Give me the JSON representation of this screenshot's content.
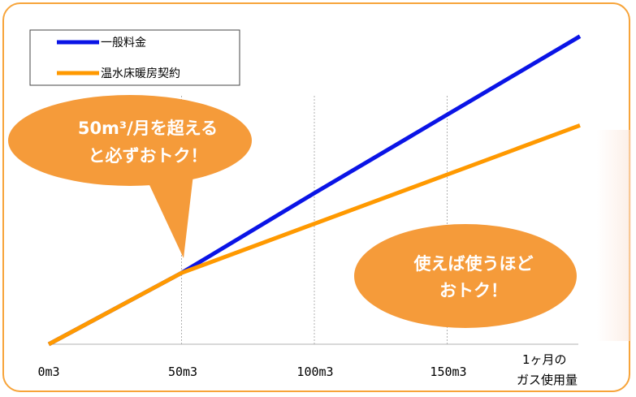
{
  "chart_data": {
    "type": "line",
    "categories": [
      "0m3",
      "50m3",
      "100m3",
      "150m3"
    ],
    "x": [
      0,
      50,
      100,
      150,
      200
    ],
    "xlabel": [
      "1ヶ月の",
      "ガス使用量"
    ],
    "ylabel": "",
    "grid": "vertical",
    "legend_position": "top-left",
    "series": [
      {
        "name": "一般料金",
        "color": "#0a14e6",
        "values": [
          0,
          100,
          212,
          322,
          432
        ]
      },
      {
        "name": "温水床暖房契約",
        "color": "#ff9900",
        "values": [
          0,
          100,
          169,
          238,
          307
        ]
      }
    ]
  },
  "callouts": {
    "left": {
      "lines": [
        "50m³/月を超える",
        "と必ずおトク！"
      ],
      "color": "#f59b3a"
    },
    "right": {
      "lines": [
        "使えば使うほど",
        "おトク！"
      ],
      "color": "#f59b3a"
    }
  },
  "colors": {
    "frame": "#f7a43a",
    "gridline": "#b0b0b0",
    "axis": "#b0b0b0"
  }
}
